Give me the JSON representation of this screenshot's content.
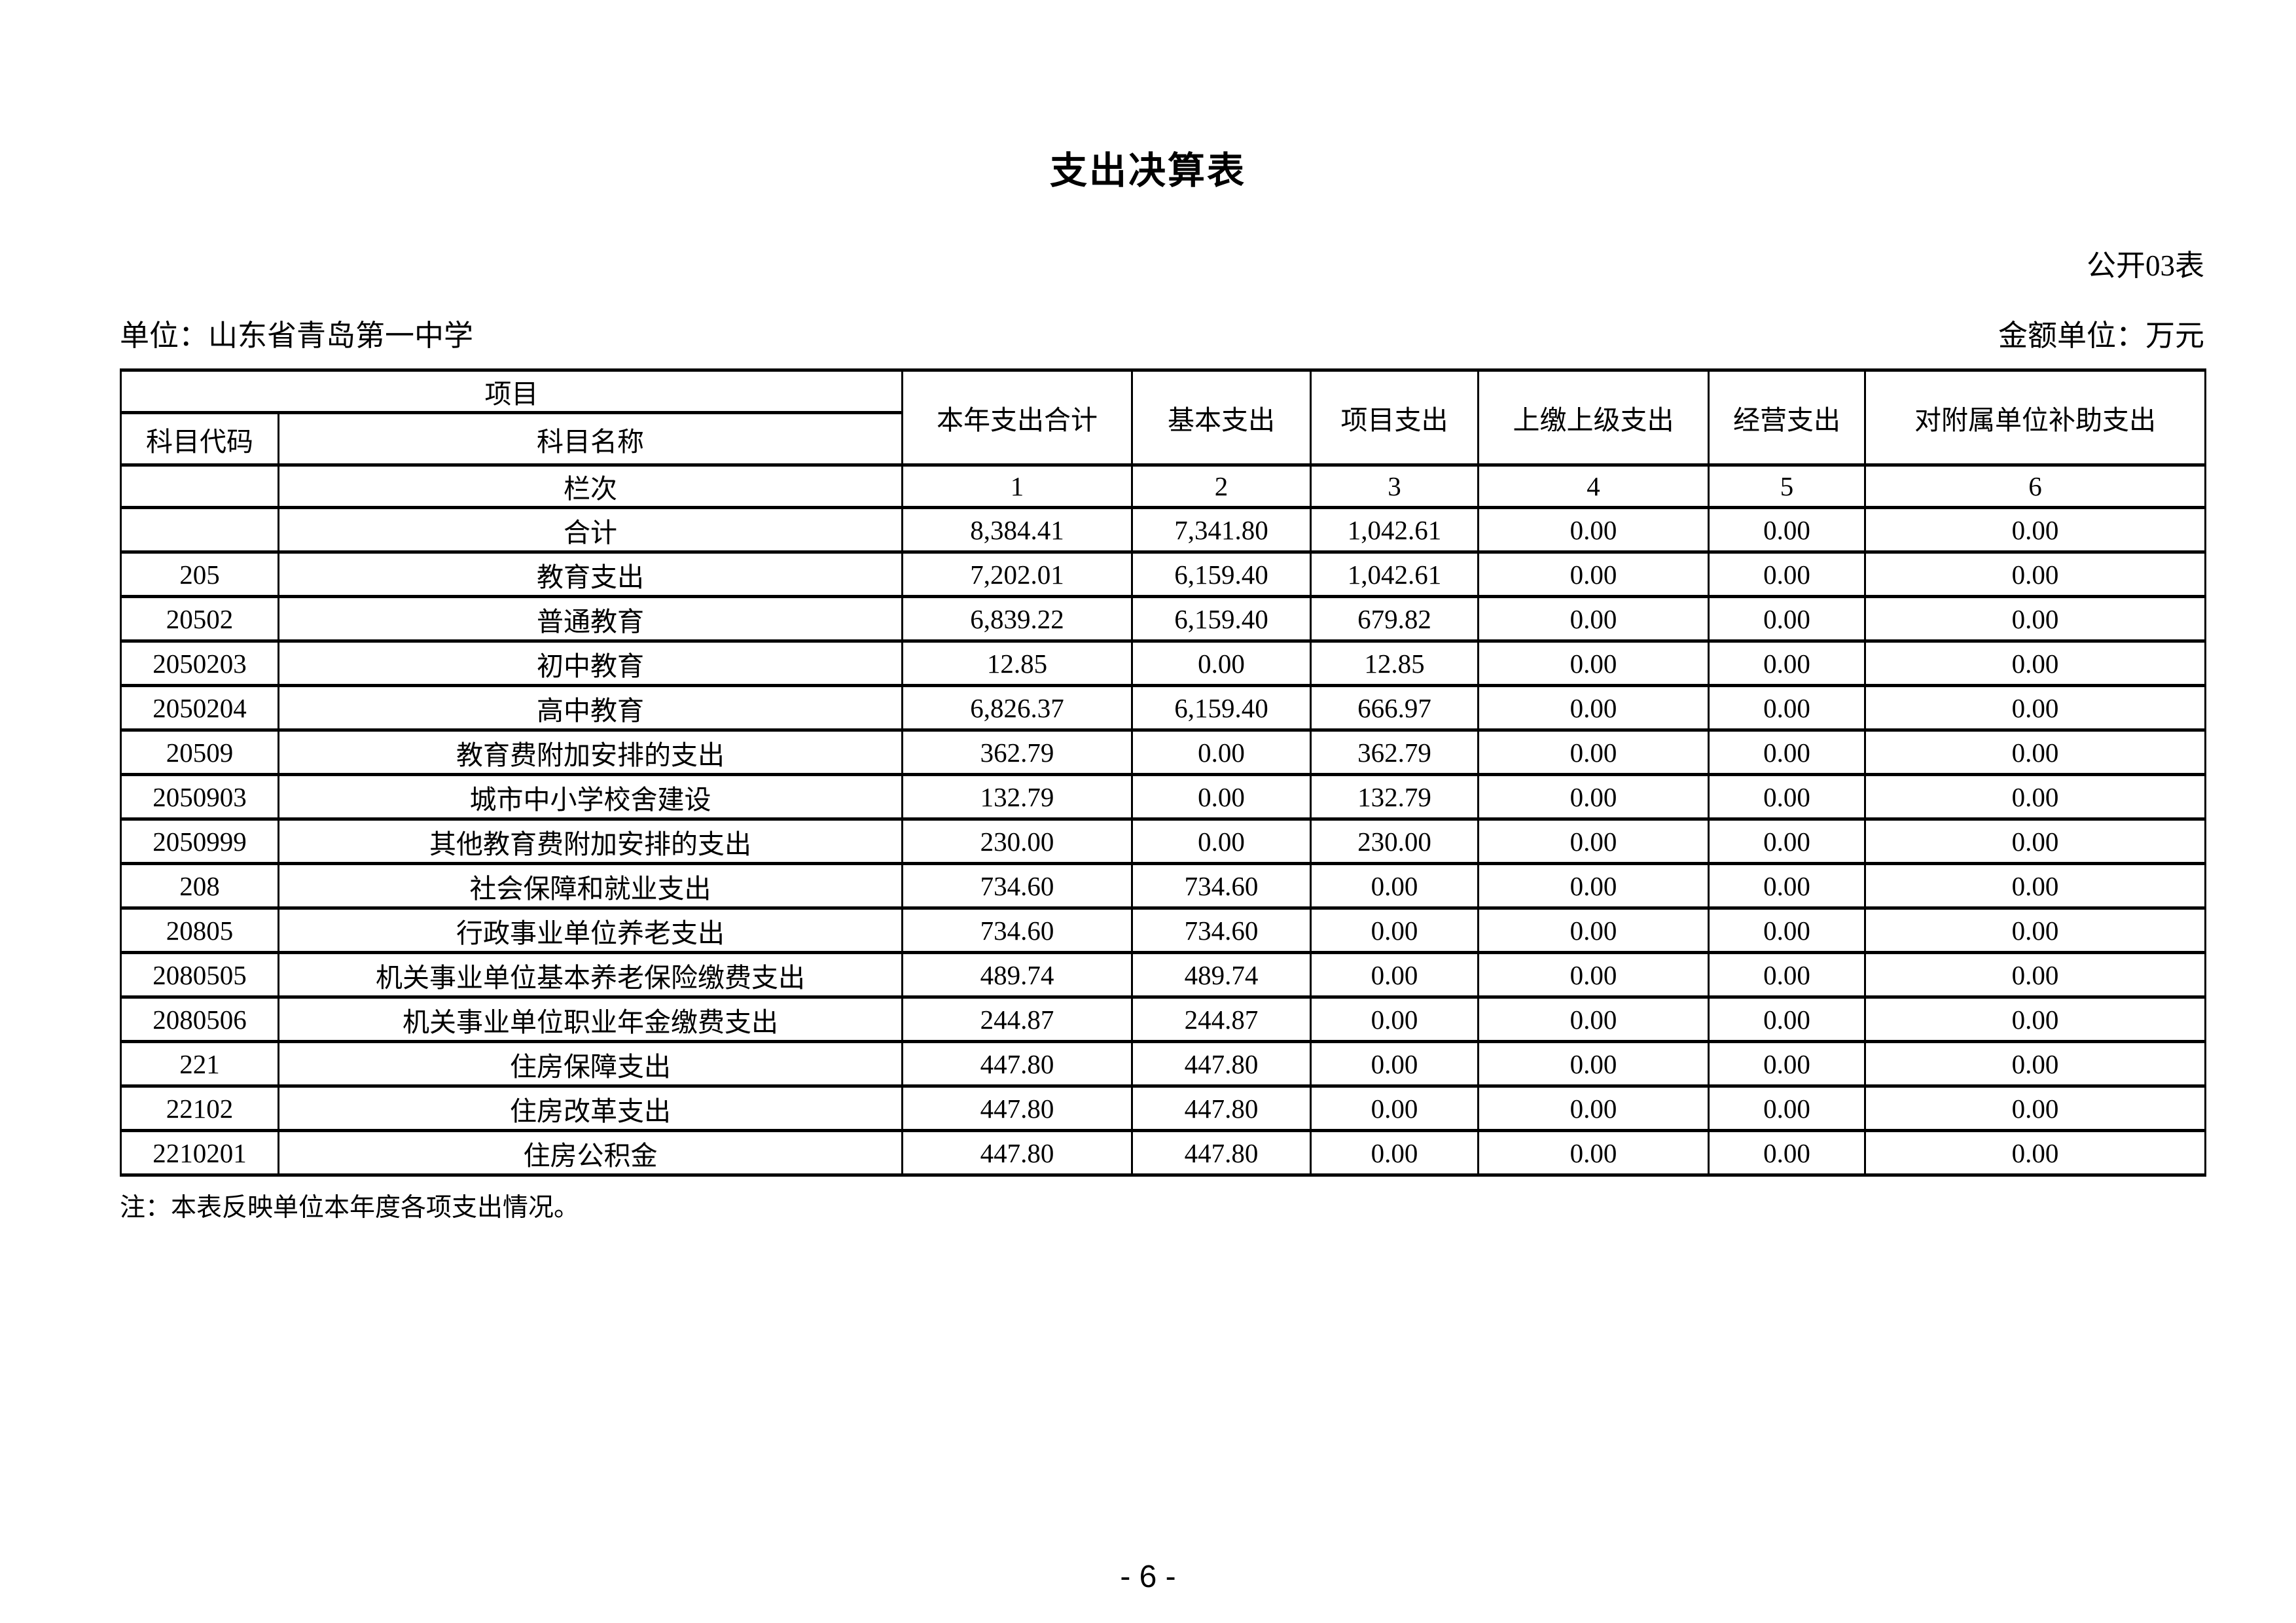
{
  "page": {
    "title": "支出决算表",
    "table_code": "公开03表",
    "unit_label": "单位：山东省青岛第一中学",
    "amount_unit_label": "金额单位：万元",
    "note": "注：本表反映单位本年度各项支出情况。",
    "page_number": "- 6 -"
  },
  "table": {
    "header": {
      "project_group": "项目",
      "subject_code": "科目代码",
      "subject_name": "科目名称",
      "columns": [
        "本年支出合计",
        "基本支出",
        "项目支出",
        "上缴上级支出",
        "经营支出",
        "对附属单位补助支出"
      ],
      "rank_label": "栏次",
      "rank_numbers": [
        "1",
        "2",
        "3",
        "4",
        "5",
        "6"
      ]
    },
    "rows": [
      {
        "code": "",
        "name": "合计",
        "align": "center",
        "values": [
          "8,384.41",
          "7,341.80",
          "1,042.61",
          "0.00",
          "0.00",
          "0.00"
        ]
      },
      {
        "code": "205",
        "name": "教育支出",
        "align": "left",
        "values": [
          "7,202.01",
          "6,159.40",
          "1,042.61",
          "0.00",
          "0.00",
          "0.00"
        ]
      },
      {
        "code": "20502",
        "name": "普通教育",
        "align": "left",
        "values": [
          "6,839.22",
          "6,159.40",
          "679.82",
          "0.00",
          "0.00",
          "0.00"
        ]
      },
      {
        "code": "2050203",
        "name": "初中教育",
        "align": "left",
        "values": [
          "12.85",
          "0.00",
          "12.85",
          "0.00",
          "0.00",
          "0.00"
        ]
      },
      {
        "code": "2050204",
        "name": "高中教育",
        "align": "left",
        "values": [
          "6,826.37",
          "6,159.40",
          "666.97",
          "0.00",
          "0.00",
          "0.00"
        ]
      },
      {
        "code": "20509",
        "name": "教育费附加安排的支出",
        "align": "left",
        "values": [
          "362.79",
          "0.00",
          "362.79",
          "0.00",
          "0.00",
          "0.00"
        ]
      },
      {
        "code": "2050903",
        "name": "城市中小学校舍建设",
        "align": "left",
        "values": [
          "132.79",
          "0.00",
          "132.79",
          "0.00",
          "0.00",
          "0.00"
        ]
      },
      {
        "code": "2050999",
        "name": "其他教育费附加安排的支出",
        "align": "left",
        "values": [
          "230.00",
          "0.00",
          "230.00",
          "0.00",
          "0.00",
          "0.00"
        ]
      },
      {
        "code": "208",
        "name": "社会保障和就业支出",
        "align": "left",
        "values": [
          "734.60",
          "734.60",
          "0.00",
          "0.00",
          "0.00",
          "0.00"
        ]
      },
      {
        "code": "20805",
        "name": "行政事业单位养老支出",
        "align": "left",
        "values": [
          "734.60",
          "734.60",
          "0.00",
          "0.00",
          "0.00",
          "0.00"
        ]
      },
      {
        "code": "2080505",
        "name": "机关事业单位基本养老保险缴费支出",
        "align": "left",
        "values": [
          "489.74",
          "489.74",
          "0.00",
          "0.00",
          "0.00",
          "0.00"
        ]
      },
      {
        "code": "2080506",
        "name": "机关事业单位职业年金缴费支出",
        "align": "left",
        "values": [
          "244.87",
          "244.87",
          "0.00",
          "0.00",
          "0.00",
          "0.00"
        ]
      },
      {
        "code": "221",
        "name": "住房保障支出",
        "align": "left",
        "values": [
          "447.80",
          "447.80",
          "0.00",
          "0.00",
          "0.00",
          "0.00"
        ]
      },
      {
        "code": "22102",
        "name": "住房改革支出",
        "align": "left",
        "values": [
          "447.80",
          "447.80",
          "0.00",
          "0.00",
          "0.00",
          "0.00"
        ]
      },
      {
        "code": "2210201",
        "name": "住房公积金",
        "align": "left",
        "values": [
          "447.80",
          "447.80",
          "0.00",
          "0.00",
          "0.00",
          "0.00"
        ]
      }
    ]
  }
}
